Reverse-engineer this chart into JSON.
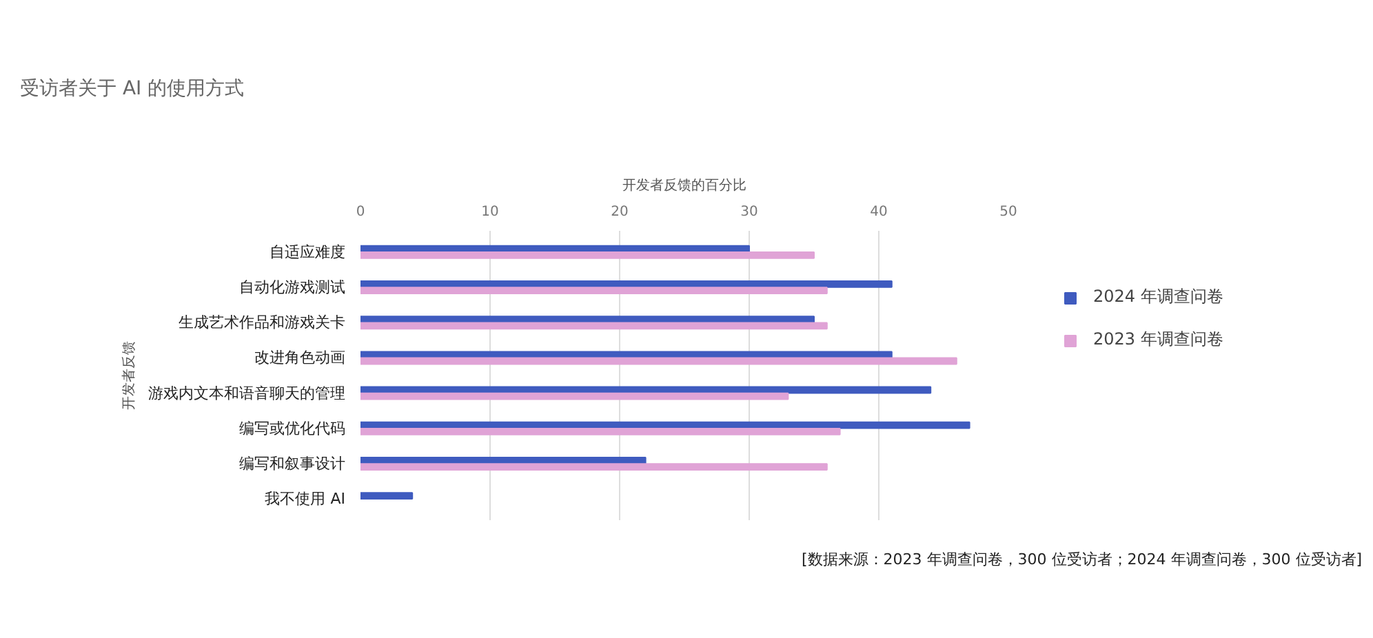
{
  "chart_data": {
    "type": "bar",
    "orientation": "horizontal",
    "title": "受访者关于 AI 的使用方式",
    "xlabel": "开发者反馈的百分比",
    "ylabel": "开发者反馈",
    "categories": [
      "自适应难度",
      "自动化游戏测试",
      "生成艺术作品和游戏关卡",
      "改进角色动画",
      "游戏内文本和语音聊天的管理",
      "编写或优化代码",
      "编写和叙事设计",
      "我不使用 AI"
    ],
    "series": [
      {
        "name": "2024 年调查问卷",
        "color": "#3f5bbf",
        "values": [
          30,
          41,
          35,
          41,
          44,
          47,
          22,
          4
        ]
      },
      {
        "name": "2023 年调查问卷",
        "color": "#e0a3d6",
        "values": [
          35,
          36,
          36,
          46,
          33,
          37,
          36,
          null
        ]
      }
    ],
    "xlim": [
      0,
      50
    ],
    "xticks": [
      0,
      10,
      20,
      30,
      40,
      50
    ],
    "grid": "x",
    "legend": "right",
    "annotations": [
      "[数据来源：2023 年调查问卷，300 位受访者；2024 年调查问卷，300 位受访者]"
    ]
  }
}
